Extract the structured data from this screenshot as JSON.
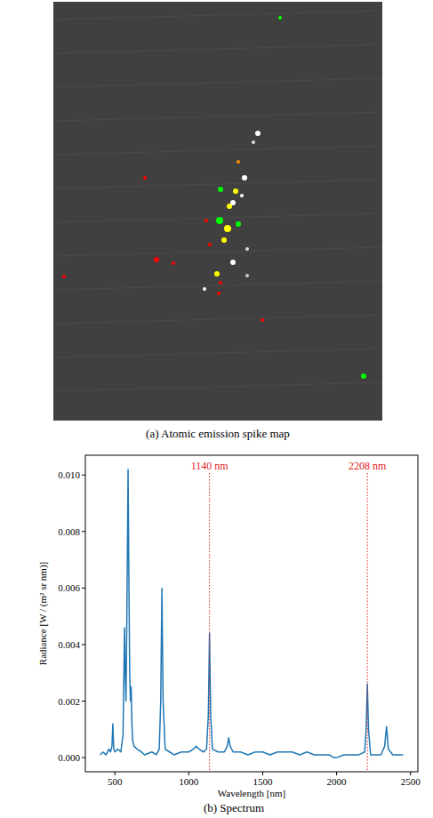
{
  "image_panel": {
    "caption": "(a) Atomic emission spike map"
  },
  "chart_data": {
    "type": "line",
    "title": "(b) Spectrum",
    "x_label": "Wavelength [nm]",
    "y_label": "Radiance [W / (m² sr nm)]",
    "color": "#1f77b4",
    "x": [
      400,
      420,
      440,
      460,
      470,
      480,
      486,
      492,
      500,
      520,
      540,
      555,
      565,
      570,
      575,
      580,
      589,
      595,
      600,
      605,
      610,
      615,
      620,
      630,
      650,
      680,
      700,
      750,
      780,
      800,
      810,
      818,
      826,
      840,
      870,
      900,
      950,
      1000,
      1030,
      1050,
      1070,
      1100,
      1120,
      1132,
      1140,
      1148,
      1160,
      1200,
      1240,
      1260,
      1270,
      1280,
      1300,
      1350,
      1400,
      1450,
      1500,
      1550,
      1600,
      1650,
      1700,
      1750,
      1800,
      1850,
      1900,
      1950,
      1980,
      2000,
      2050,
      2100,
      2150,
      2190,
      2200,
      2208,
      2216,
      2230,
      2260,
      2300,
      2325,
      2338,
      2350,
      2380,
      2420,
      2450
    ],
    "values": [
      0.0001,
      0.0002,
      0.0001,
      0.0003,
      0.0002,
      0.0004,
      0.0012,
      0.0003,
      0.0002,
      0.0003,
      0.0002,
      0.0008,
      0.0046,
      0.003,
      0.002,
      0.0045,
      0.0102,
      0.006,
      0.003,
      0.002,
      0.0025,
      0.0012,
      0.0006,
      0.0004,
      0.0003,
      0.0002,
      0.0001,
      0.0002,
      0.0001,
      0.0003,
      0.002,
      0.006,
      0.002,
      0.0003,
      0.0002,
      0.0001,
      0.0002,
      0.0002,
      0.0003,
      0.0004,
      0.0003,
      0.0002,
      0.0003,
      0.0015,
      0.0044,
      0.0015,
      0.0003,
      0.0002,
      0.0002,
      0.0004,
      0.0007,
      0.0004,
      0.0002,
      0.0002,
      0.0001,
      0.0002,
      0.0002,
      0.0001,
      0.0002,
      0.0002,
      0.0002,
      0.0001,
      0.0002,
      0.0001,
      0.0001,
      0.0001,
      0.0,
      0.0,
      0.0001,
      0.0001,
      0.0001,
      0.0002,
      0.001,
      0.0026,
      0.001,
      0.0001,
      0.0001,
      0.0001,
      0.0004,
      0.0011,
      0.0003,
      0.0001,
      0.0001,
      0.0001
    ],
    "xlim": [
      300,
      2550
    ],
    "xticks": [
      500,
      1000,
      1500,
      2000,
      2500
    ],
    "ylim": [
      -0.0005,
      0.0107
    ],
    "yticks": [
      {
        "value": 0,
        "label": "0.000"
      },
      {
        "value": 0.002,
        "label": "0.002"
      },
      {
        "value": 0.004,
        "label": "0.004"
      },
      {
        "value": 0.006,
        "label": "0.006"
      },
      {
        "value": 0.008,
        "label": "0.008"
      },
      {
        "value": 0.01,
        "label": "0.010"
      }
    ],
    "grid": false,
    "annotations": [
      {
        "x": 1140,
        "label": "1140 nm"
      },
      {
        "x": 2208,
        "label": "2208 nm"
      }
    ]
  }
}
